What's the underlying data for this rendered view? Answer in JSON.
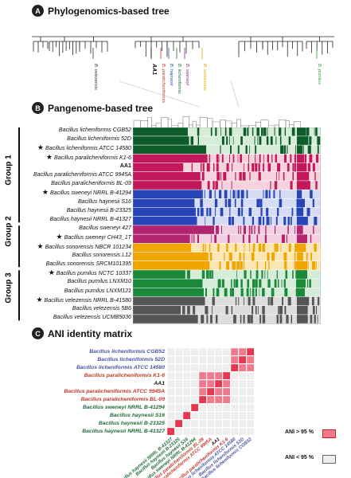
{
  "panel_a": {
    "badge": "A",
    "title": "Phylogenomics-based tree",
    "tip_labels": [
      {
        "text": "B. velezensis",
        "color": "#333333"
      },
      {
        "text": "AA1",
        "color": "#111111"
      },
      {
        "text": "B. paralicheniformis",
        "color": "#c0392b"
      },
      {
        "text": "B. haynesii",
        "color": "#2b4aa8"
      },
      {
        "text": "B. licheniformis",
        "color": "#1f6b3a"
      },
      {
        "text": "B. sweneyi",
        "color": "#8e2a8e"
      },
      {
        "text": "B. sonorensis",
        "color": "#e0a800"
      },
      {
        "text": "B. pumilus",
        "color": "#2ea043"
      }
    ]
  },
  "panel_b": {
    "badge": "B",
    "title": "Pangenome-based tree",
    "groups": [
      "Group 1",
      "Group 2",
      "Group 3"
    ],
    "rows": [
      {
        "label": "Bacillus licheniformis CGB52",
        "star": false,
        "color": "#0d5c2a",
        "light": "#d7ecd9"
      },
      {
        "label": "Bacillus licheniformis 52D",
        "star": false,
        "color": "#0d5c2a",
        "light": "#d7ecd9"
      },
      {
        "label": "Bacillus licheniformis ATCC 14580",
        "star": true,
        "color": "#0d5c2a",
        "light": "#d7ecd9"
      },
      {
        "label": "Bacillus paralicheniformis K1-6",
        "star": true,
        "color": "#c2185b",
        "light": "#f6d2dc"
      },
      {
        "label": "AA1",
        "star": false,
        "color": "#c2185b",
        "light": "#f6d2dc"
      },
      {
        "label": "Bacillus paralicheniformis ATCC 9945A",
        "star": false,
        "color": "#c2185b",
        "light": "#f6d2dc"
      },
      {
        "label": "Bacillus paralicheniformis BL-09",
        "star": false,
        "color": "#c2185b",
        "light": "#f6d2dc"
      },
      {
        "label": "Bacillus sweneyi NRRL B-41294",
        "star": true,
        "color": "#2845b8",
        "light": "#d5dcf4"
      },
      {
        "label": "Bacillus haynesii S16",
        "star": false,
        "color": "#2845b8",
        "light": "#d5dcf4"
      },
      {
        "label": "Bacillus haynesii B-23325",
        "star": false,
        "color": "#2845b8",
        "light": "#d5dcf4"
      },
      {
        "label": "Bacillus haynesii NRRL B-41327",
        "star": false,
        "color": "#2845b8",
        "light": "#d5dcf4"
      },
      {
        "label": "Bacillus sweneyi 427",
        "star": false,
        "color": "#b3246e",
        "light": "#f1d0e1"
      },
      {
        "label": "Bacillus sweneyi CH43_1T",
        "star": true,
        "color": "#b3246e",
        "light": "#f1d0e1"
      },
      {
        "label": "Bacillus sonorensis NBCR 101234",
        "star": true,
        "color": "#f0a500",
        "light": "#fbe7b5"
      },
      {
        "label": "Bacillus sonorensis L12",
        "star": false,
        "color": "#f0a500",
        "light": "#fbe7b5"
      },
      {
        "label": "Bacillus sonorensis SRCM101395",
        "star": false,
        "color": "#f0a500",
        "light": "#fbe7b5"
      },
      {
        "label": "Bacillus pumilus NCTC 10337",
        "star": true,
        "color": "#1a8a3a",
        "light": "#d4ecd8"
      },
      {
        "label": "Bacillus pumilus LNXM10",
        "star": false,
        "color": "#1a8a3a",
        "light": "#d4ecd8"
      },
      {
        "label": "Bacillus pumilus LNXM121",
        "star": false,
        "color": "#1a8a3a",
        "light": "#d4ecd8"
      },
      {
        "label": "Bacillus velezensis NRRL B-41580",
        "star": true,
        "color": "#555555",
        "light": "#dddddd"
      },
      {
        "label": "Bacillus velezensis 5B6",
        "star": false,
        "color": "#555555",
        "light": "#dddddd"
      },
      {
        "label": "Bacillus velezensis UCMB5036",
        "star": false,
        "color": "#555555",
        "light": "#dddddd"
      }
    ]
  },
  "panel_c": {
    "badge": "C",
    "title": "ANI identity matrix",
    "strains": [
      {
        "label": "Bacillus licheniformis CGB52",
        "color": "#4a55a2"
      },
      {
        "label": "Bacillus licheniformis 52D",
        "color": "#4a55a2"
      },
      {
        "label": "Bacillus licheniformis ATCC 14580",
        "color": "#4a55a2"
      },
      {
        "label": "Bacillus paralicheniformis K1-6",
        "color": "#c0392b"
      },
      {
        "label": "AA1",
        "color": "#111111"
      },
      {
        "label": "Bacillus paralicheniformis ATCC 9945A",
        "color": "#c0392b"
      },
      {
        "label": "Bacillus paralicheniformis BL-09",
        "color": "#c0392b"
      },
      {
        "label": "Bacillus sweneyi NRRL B-41294",
        "color": "#1f6b3a"
      },
      {
        "label": "Bacillus haynesii S16",
        "color": "#1f6b3a"
      },
      {
        "label": "Bacillus haynesii B-23325",
        "color": "#1f6b3a"
      },
      {
        "label": "Bacillus haynesii NRRL B-41327",
        "color": "#1f6b3a"
      }
    ],
    "high_color": "#f07a8c",
    "high_dark": "#e8364f",
    "low_color": "#eeeeee",
    "legend_high": "ANI > 95 %",
    "legend_low": "ANI < 95 %"
  }
}
